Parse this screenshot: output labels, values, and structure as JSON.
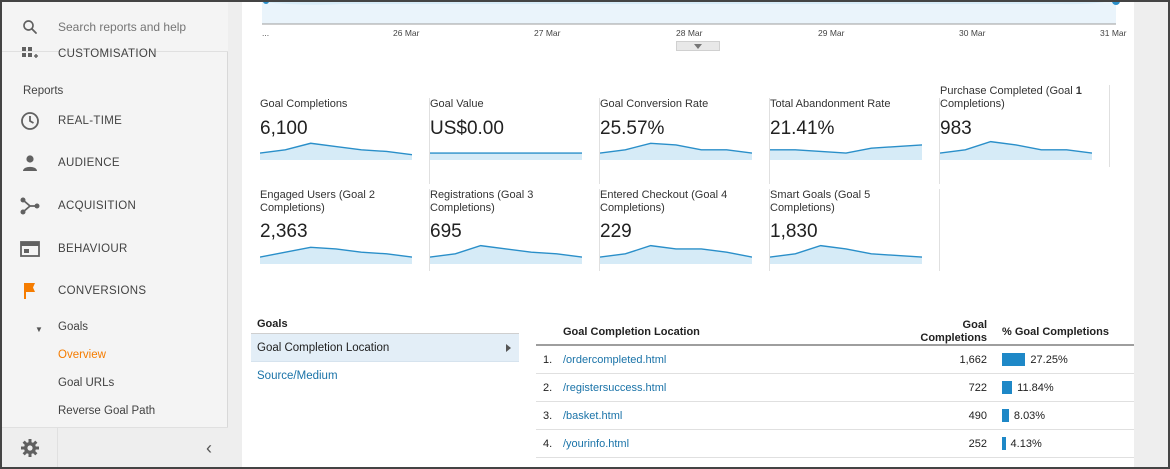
{
  "sidebar": {
    "search_placeholder": "Search reports and help",
    "customisation_label": "CUSTOMISATION",
    "section_reports": "Reports",
    "nav": [
      {
        "label": "REAL-TIME",
        "icon": "clock-icon"
      },
      {
        "label": "AUDIENCE",
        "icon": "person-icon"
      },
      {
        "label": "ACQUISITION",
        "icon": "acquisition-icon"
      },
      {
        "label": "BEHAVIOUR",
        "icon": "behaviour-icon"
      },
      {
        "label": "CONVERSIONS",
        "icon": "flag-icon"
      }
    ],
    "goals_label": "Goals",
    "goals_children": [
      "Overview",
      "Goal URLs",
      "Reverse Goal Path"
    ],
    "active_child": "Overview"
  },
  "chart_axis": {
    "labels": [
      "...",
      "26 Mar",
      "27 Mar",
      "28 Mar",
      "29 Mar",
      "30 Mar",
      "31 Mar"
    ]
  },
  "metrics": [
    {
      "label": "Goal Completions",
      "value": "6,100",
      "spark": [
        3,
        5,
        9,
        7,
        5,
        4,
        2
      ]
    },
    {
      "label": "Goal Value",
      "value": "US$0.00",
      "spark": [
        3,
        3,
        3,
        3,
        3,
        3,
        3
      ]
    },
    {
      "label": "Goal Conversion Rate",
      "value": "25.57%",
      "spark": [
        3,
        5,
        9,
        8,
        5,
        5,
        3
      ]
    },
    {
      "label": "Total Abandonment Rate",
      "value": "21.41%",
      "spark": [
        5,
        5,
        4,
        3,
        6,
        7,
        8
      ]
    },
    {
      "label_pre": "Purchase Completed (Goal ",
      "label_bold": "1",
      "label_post": " Completions)",
      "value": "983",
      "spark": [
        3,
        5,
        10,
        8,
        5,
        5,
        3
      ]
    },
    {
      "label": "Engaged Users (Goal 2 Completions)",
      "value": "2,363",
      "spark": [
        3,
        6,
        9,
        8,
        6,
        5,
        3
      ]
    },
    {
      "label": "Registrations (Goal 3 Completions)",
      "value": "695",
      "spark": [
        3,
        5,
        10,
        8,
        6,
        5,
        3
      ]
    },
    {
      "label": "Entered Checkout (Goal 4 Completions)",
      "value": "229",
      "spark": [
        3,
        5,
        10,
        8,
        8,
        6,
        3
      ]
    },
    {
      "label": "Smart Goals (Goal 5 Completions)",
      "value": "1,830",
      "spark": [
        3,
        5,
        10,
        8,
        5,
        4,
        3
      ]
    }
  ],
  "goals_panel": {
    "header": "Goals",
    "selected": "Goal Completion Location",
    "other": "Source/Medium"
  },
  "goal_table": {
    "col_location": "Goal Completion Location",
    "col_completions": "Goal Completions",
    "col_pct": "% Goal Completions",
    "rows": [
      {
        "idx": "1.",
        "location": "/ordercompleted.html",
        "completions": "1,662",
        "pct": "27.25%",
        "share": 27.25
      },
      {
        "idx": "2.",
        "location": "/registersuccess.html",
        "completions": "722",
        "pct": "11.84%",
        "share": 11.84
      },
      {
        "idx": "3.",
        "location": "/basket.html",
        "completions": "490",
        "pct": "8.03%",
        "share": 8.03
      },
      {
        "idx": "4.",
        "location": "/yourinfo.html",
        "completions": "252",
        "pct": "4.13%",
        "share": 4.13
      }
    ]
  },
  "colors": {
    "accent_orange": "#f57c00",
    "link_blue": "#1a73a8",
    "spark_line": "#2a8fc9",
    "spark_fill": "#d6ebf7",
    "bar_blue": "#1e88c7"
  }
}
